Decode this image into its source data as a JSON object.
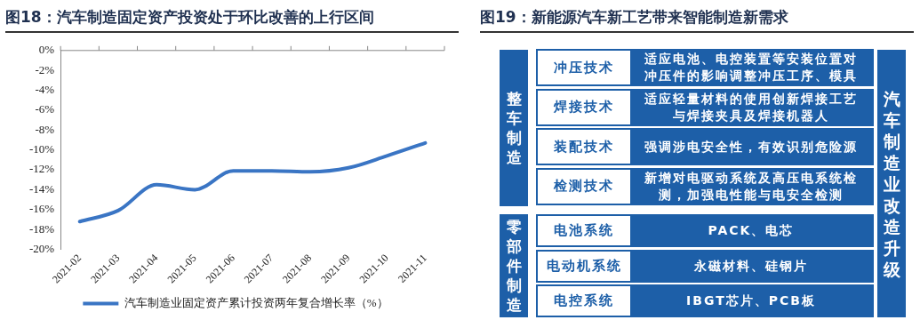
{
  "chart_data": [
    {
      "type": "line",
      "title": "图18：汽车制造固定资产投资处于环比改善的上行区间",
      "categories": [
        "2021-02",
        "2021-03",
        "2021-04",
        "2021-05",
        "2021-06",
        "2021-07",
        "2021-08",
        "2021-09",
        "2021-10",
        "2021-11"
      ],
      "series": [
        {
          "name": "汽车制造业固定资产累计投资两年复合增长率（%）",
          "color": "#3a75c4",
          "values": [
            -17.2,
            -16.1,
            -13.5,
            -14.0,
            -12.1,
            -12.1,
            -12.2,
            -11.8,
            -10.6,
            -9.3
          ]
        }
      ],
      "ylim": [
        -20,
        0
      ],
      "yticks": [
        {
          "value": 0,
          "label": "0%"
        },
        {
          "value": -2,
          "label": "-2%"
        },
        {
          "value": -4,
          "label": "-4%"
        },
        {
          "value": -6,
          "label": "-6%"
        },
        {
          "value": -8,
          "label": "-8%"
        },
        {
          "value": -10,
          "label": "-10%"
        },
        {
          "value": -12,
          "label": "-12%"
        },
        {
          "value": -14,
          "label": "-14%"
        },
        {
          "value": -16,
          "label": "-16%"
        },
        {
          "value": -18,
          "label": "-18%"
        },
        {
          "value": -20,
          "label": "-20%"
        }
      ],
      "legend": "bottom",
      "grid": false,
      "marker": "none"
    },
    {
      "type": "other",
      "title": "图19：新能源汽车新工艺带来智能制造新需求",
      "annotations": [
        "整车制造",
        "冲压技术",
        "适应电池、电控装置等安装位置对冲压件的影响调整冲压工序、模具",
        "焊接技术",
        "适应轻量材料的使用创新焊接工艺与焊接夹具及焊接机器人",
        "装配技术",
        "强调涉电安全性，有效识别危险源",
        "检测技术",
        "新增对电驱动系统及高压电系统检测，加强电性能与电安全检测",
        "零部件制造",
        "电池系统",
        "PACK、电芯",
        "电动机系统",
        "永磁材料、硅钢片",
        "电控系统",
        "IBGT芯片、PCB板",
        "汽车制造业改造升级"
      ]
    }
  ]
}
